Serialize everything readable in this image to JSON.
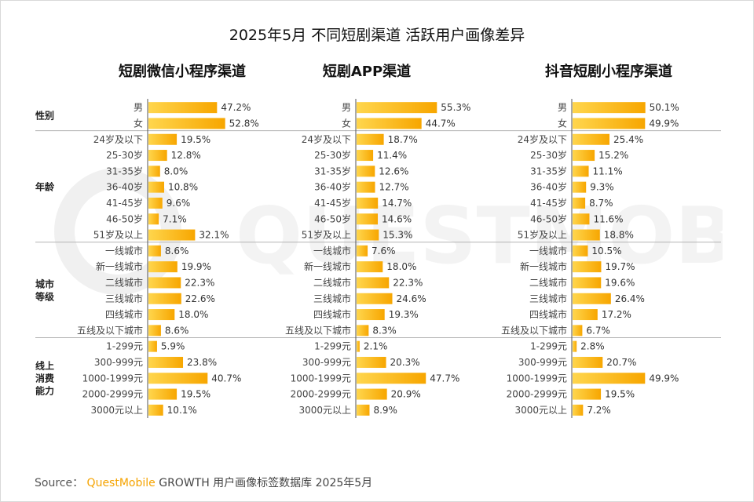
{
  "title": "2025年5月 不同短剧渠道 活跃用户画像差异",
  "source": {
    "prefix": "Source：",
    "brand": "QuestMobile",
    "suffix": "GROWTH 用户画像标签数据库 2025年5月"
  },
  "watermark": "QUESTMOBILE",
  "colors": {
    "bar_light": "#ffd64d",
    "bar_dark": "#f7a600",
    "separator": "#b3b3b3",
    "axis": "#555555"
  },
  "chart_data": {
    "type": "bar",
    "orientation": "horizontal",
    "value_unit": "%",
    "groups": [
      {
        "name": "性别",
        "categories": [
          "男",
          "女"
        ]
      },
      {
        "name": "年龄",
        "categories": [
          "24岁及以下",
          "25-30岁",
          "31-35岁",
          "36-40岁",
          "41-45岁",
          "46-50岁",
          "51岁及以上"
        ]
      },
      {
        "name": "城市等级",
        "categories": [
          "一线城市",
          "新一线城市",
          "二线城市",
          "三线城市",
          "四线城市",
          "五线及以下城市"
        ]
      },
      {
        "name": "线上消费能力",
        "categories": [
          "1-299元",
          "300-999元",
          "1000-1999元",
          "2000-2999元",
          "3000元以上"
        ]
      }
    ],
    "panels": [
      {
        "title": "短剧微信小程序渠道",
        "values": [
          [
            47.2,
            52.8
          ],
          [
            19.5,
            12.8,
            8.0,
            10.8,
            9.6,
            7.1,
            32.1
          ],
          [
            8.6,
            19.9,
            22.3,
            22.6,
            18.0,
            8.6
          ],
          [
            5.9,
            23.8,
            40.7,
            19.5,
            10.1
          ]
        ]
      },
      {
        "title": "短剧APP渠道",
        "values": [
          [
            55.3,
            44.7
          ],
          [
            18.7,
            11.4,
            12.6,
            12.7,
            14.7,
            14.6,
            15.3
          ],
          [
            7.6,
            18.0,
            22.3,
            24.6,
            19.3,
            8.3
          ],
          [
            2.1,
            20.3,
            47.7,
            20.9,
            8.9
          ]
        ]
      },
      {
        "title": "抖音短剧小程序渠道",
        "values": [
          [
            50.1,
            49.9
          ],
          [
            25.4,
            15.2,
            11.1,
            9.3,
            8.7,
            11.6,
            18.8
          ],
          [
            10.5,
            19.7,
            19.6,
            26.4,
            17.2,
            6.7
          ],
          [
            2.8,
            20.7,
            49.9,
            19.5,
            7.2
          ]
        ]
      }
    ]
  }
}
